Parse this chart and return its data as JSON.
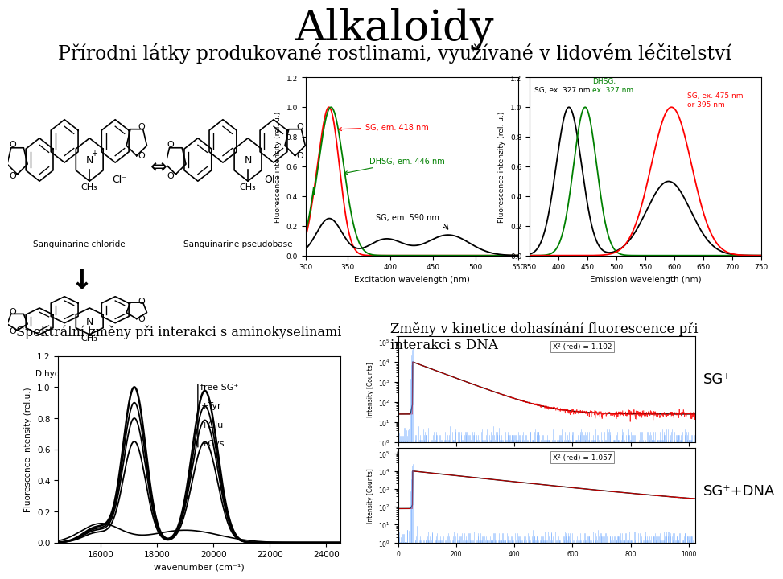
{
  "title": "Alkaloidy",
  "subtitle": "Přírodni látky produkované rostlinami, využívané v lidovém léčitelství",
  "title_fontsize": 38,
  "subtitle_fontsize": 17,
  "bg_color": "#ffffff",
  "label_sg_chloride": "Sanguinarine chloride",
  "label_sg_pseudo": "Sanguinarine pseudobase",
  "label_dhsg": "Dihydrosanguinarine",
  "excitation_xlabel": "Excitation wavelength (nm)",
  "excitation_ylabel": "Fluorescence intensity (rel. u.)",
  "excitation_xlim": [
    300,
    550
  ],
  "excitation_ylim": [
    0.0,
    1.2
  ],
  "excitation_yticks": [
    0.0,
    0.2,
    0.4,
    0.6,
    0.8,
    1.0,
    1.2
  ],
  "excitation_xticks": [
    300,
    350,
    400,
    450,
    500,
    550
  ],
  "emission_xlabel": "Emission wavelength (nm)",
  "emission_ylabel": "Fluorescence intenzity (rel. u.)",
  "emission_xlim": [
    350,
    750
  ],
  "emission_ylim": [
    0.0,
    1.2
  ],
  "emission_yticks": [
    0.0,
    0.2,
    0.4,
    0.6,
    0.8,
    1.0,
    1.2
  ],
  "emission_xticks": [
    350,
    400,
    450,
    500,
    550,
    600,
    650,
    700,
    750
  ],
  "spektral_xlabel": "wavenumber (cm⁻¹)",
  "spektral_ylabel": "Fluorescence intensity (rel.u.)",
  "spektral_xlim": [
    14500,
    24500
  ],
  "spektral_ylim": [
    0.0,
    1.2
  ],
  "spektral_xticks": [
    16000,
    18000,
    20000,
    22000,
    24000
  ],
  "spektral_yticks": [
    0.0,
    0.2,
    0.4,
    0.6,
    0.8,
    1.0,
    1.2
  ],
  "spektral_label_free": "free SG⁺",
  "spektral_label_tyr": "+Tyr",
  "spektral_label_glu": "+Glu",
  "spektral_label_cys": "+Cys",
  "kinetics_title": "Změny v kinetice dohasínání fluorescence při\ninterakci s DNA",
  "kinetics_label1": "SG⁺",
  "kinetics_label2": "SG⁺+DNA",
  "kinetics_chi1": "X² (red) = 1.102",
  "kinetics_chi2": "X² (red) = 1.057",
  "kinetics_ylabel": "Intensity [Counts]",
  "spektral_label": "Spektrální změny při interakci s aminokyselinami"
}
